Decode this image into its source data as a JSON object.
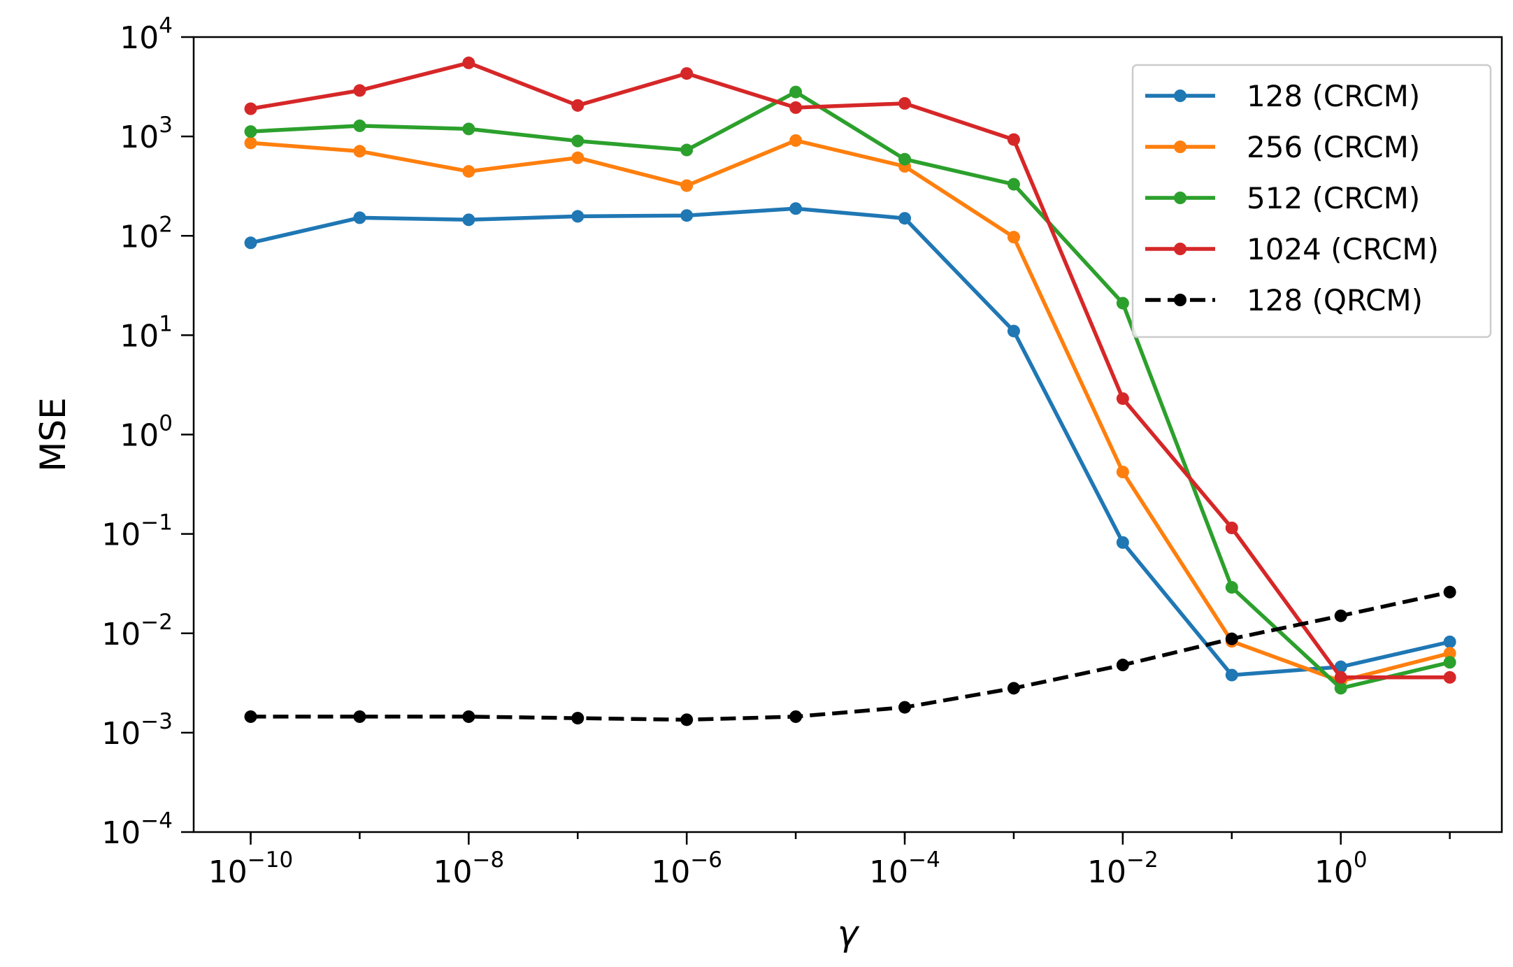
{
  "chart_data": {
    "type": "line",
    "title": "",
    "xlabel": "γ",
    "ylabel": "MSE",
    "xscale": "log",
    "yscale": "log",
    "xlim": [
      3e-11,
      30
    ],
    "ylim": [
      0.0001,
      10000
    ],
    "grid": false,
    "legend_position": "top-right",
    "x": [
      1e-10,
      1e-09,
      1e-08,
      1e-07,
      1e-06,
      1e-05,
      0.0001,
      0.001,
      0.01,
      0.1,
      1,
      10
    ],
    "xticks": [
      {
        "value": 1e-10,
        "base": "10",
        "exp": "−10"
      },
      {
        "value": 1e-08,
        "base": "10",
        "exp": "−8"
      },
      {
        "value": 1e-06,
        "base": "10",
        "exp": "−6"
      },
      {
        "value": 0.0001,
        "base": "10",
        "exp": "−4"
      },
      {
        "value": 0.01,
        "base": "10",
        "exp": "−2"
      },
      {
        "value": 1,
        "base": "10",
        "exp": "0"
      }
    ],
    "yticks": [
      {
        "value": 0.0001,
        "base": "10",
        "exp": "−4"
      },
      {
        "value": 0.001,
        "base": "10",
        "exp": "−3"
      },
      {
        "value": 0.01,
        "base": "10",
        "exp": "−2"
      },
      {
        "value": 0.1,
        "base": "10",
        "exp": "−1"
      },
      {
        "value": 1,
        "base": "10",
        "exp": "0"
      },
      {
        "value": 10,
        "base": "10",
        "exp": "1"
      },
      {
        "value": 100,
        "base": "10",
        "exp": "2"
      },
      {
        "value": 1000,
        "base": "10",
        "exp": "3"
      },
      {
        "value": 10000,
        "base": "10",
        "exp": "4"
      }
    ],
    "series": [
      {
        "name": "128 (CRCM)",
        "color": "#1f77b4",
        "dashed": false,
        "values": [
          85,
          152,
          145,
          157,
          160,
          188,
          150,
          11,
          0.082,
          0.0038,
          0.0046,
          0.0082
        ]
      },
      {
        "name": "256 (CRCM)",
        "color": "#ff7f0e",
        "dashed": false,
        "values": [
          860,
          710,
          445,
          610,
          320,
          910,
          500,
          97,
          0.42,
          0.0083,
          0.0033,
          0.0063
        ]
      },
      {
        "name": "512 (CRCM)",
        "color": "#2ca02c",
        "dashed": false,
        "values": [
          1120,
          1280,
          1190,
          900,
          730,
          2800,
          590,
          330,
          21,
          0.029,
          0.0028,
          0.0051
        ]
      },
      {
        "name": "1024 (CRCM)",
        "color": "#d62728",
        "dashed": false,
        "values": [
          1900,
          2900,
          5500,
          2050,
          4300,
          1950,
          2150,
          930,
          2.3,
          0.115,
          0.0036,
          0.0036
        ]
      },
      {
        "name": "128 (QRCM)",
        "color": "#000000",
        "dashed": true,
        "values": [
          0.00145,
          0.00145,
          0.00145,
          0.0014,
          0.00135,
          0.00145,
          0.0018,
          0.0028,
          0.0048,
          0.0088,
          0.015,
          0.026
        ]
      }
    ]
  }
}
